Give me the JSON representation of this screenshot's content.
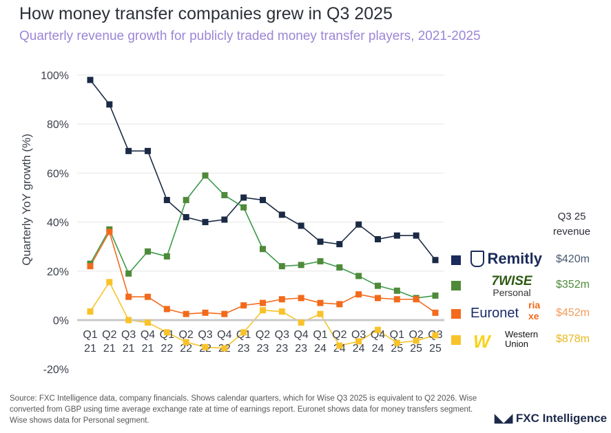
{
  "title": "How money transfer companies grew in Q3 2025",
  "subtitle": "Quarterly revenue growth for publicly traded money transfer players, 2021-2025",
  "chart_data": {
    "type": "line",
    "ylabel": "Quarterly YoY growth (%)",
    "ylim": [
      -20,
      100
    ],
    "yticks": [
      "100%",
      "80%",
      "60%",
      "40%",
      "20%",
      "0%",
      "-20%"
    ],
    "ytick_values": [
      100,
      80,
      60,
      40,
      20,
      0,
      -20
    ],
    "x_quarters": [
      "Q1",
      "Q2",
      "Q3",
      "Q4",
      "Q1",
      "Q2",
      "Q3",
      "Q4",
      "Q1",
      "Q2",
      "Q3",
      "Q4",
      "Q1",
      "Q2",
      "Q3",
      "Q4",
      "Q1",
      "Q2",
      "Q3"
    ],
    "x_years": [
      "21",
      "21",
      "21",
      "21",
      "22",
      "22",
      "22",
      "22",
      "23",
      "23",
      "23",
      "23",
      "24",
      "24",
      "24",
      "24",
      "25",
      "25",
      "25"
    ],
    "grid": true,
    "series": [
      {
        "name": "Remitly",
        "color": "#1b2a44",
        "values": [
          98,
          88,
          69,
          69,
          49,
          42,
          40,
          41,
          50,
          49,
          43,
          38.5,
          32,
          31,
          39,
          33,
          34.5,
          34.5,
          24.5
        ]
      },
      {
        "name": "Wise Personal",
        "color": "#4e8a3a",
        "line": "#3a9a4a",
        "values": [
          23,
          37,
          19,
          28,
          26,
          49,
          59,
          51,
          46,
          29,
          22,
          22.5,
          24,
          21.5,
          18,
          14,
          12,
          9,
          10
        ]
      },
      {
        "name": "Euronet",
        "color": "#f26a1b",
        "values": [
          22,
          36,
          9.5,
          9.5,
          4.5,
          2.5,
          3,
          2.5,
          6,
          7,
          8.5,
          9,
          7,
          6.5,
          10.5,
          9,
          8.5,
          8.5,
          3
        ]
      },
      {
        "name": "Western Union",
        "color": "#f8c22a",
        "values": [
          3.5,
          15.5,
          0,
          -1,
          -5,
          -9,
          -11,
          -11.5,
          -5,
          4,
          3.5,
          -1,
          2.5,
          -10.4,
          -8.7,
          -4,
          -9.3,
          -8.4,
          -6.2
        ]
      }
    ]
  },
  "legend": {
    "header_line1": "Q3 25",
    "header_line2": "revenue",
    "items": [
      {
        "logo": "Remitly",
        "sub": "",
        "revenue": "$420m",
        "color": "#1b2a5a",
        "text_color": "#4a5a70"
      },
      {
        "logo": "7WISE",
        "sub": "Personal",
        "revenue": "$352m",
        "color": "#4e8a3a",
        "text_color": "#4e8a3a"
      },
      {
        "logo": "Euronet",
        "sub": "ria xe",
        "revenue": "$452m",
        "color": "#f26a1b",
        "text_color": "#f59a5a"
      },
      {
        "logo": "Western",
        "sub": "Union",
        "revenue": "$878m",
        "color": "#f8c22a",
        "text_color": "#e8b820"
      }
    ]
  },
  "source": "Source: FXC Intelligence data, company financials. Shows calendar quarters, which for Wise Q3 2025 is equivalent to Q2 2026. Wise converted from GBP using time average exchange rate at time of earnings report. Euronet shows data for money transfers segment. Wise shows data for Personal segment.",
  "brand": "FXC Intelligence"
}
